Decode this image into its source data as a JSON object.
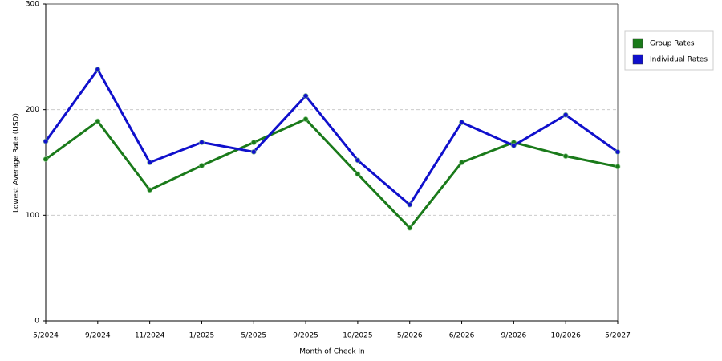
{
  "chart_data": {
    "type": "line",
    "x_label": "Month of Check In",
    "y_label": "Lowest Average Rate (USD)",
    "categories": [
      "5/2024",
      "9/2024",
      "11/2024",
      "1/2025",
      "5/2025",
      "9/2025",
      "10/2025",
      "5/2026",
      "6/2026",
      "9/2026",
      "10/2026",
      "5/2027"
    ],
    "series": [
      {
        "name": "Group Rates",
        "color": "#1a7a1a",
        "values": [
          153,
          189,
          124,
          147,
          169,
          191,
          139,
          88,
          150,
          169,
          156,
          146
        ]
      },
      {
        "name": "Individual Rates",
        "color": "#1010cc",
        "values": [
          170,
          238,
          150,
          169,
          160,
          213,
          152,
          110,
          188,
          166,
          195,
          160
        ]
      }
    ],
    "ylim": [
      0,
      300
    ],
    "yticks": [
      0,
      100,
      200,
      300
    ],
    "grid": true
  }
}
